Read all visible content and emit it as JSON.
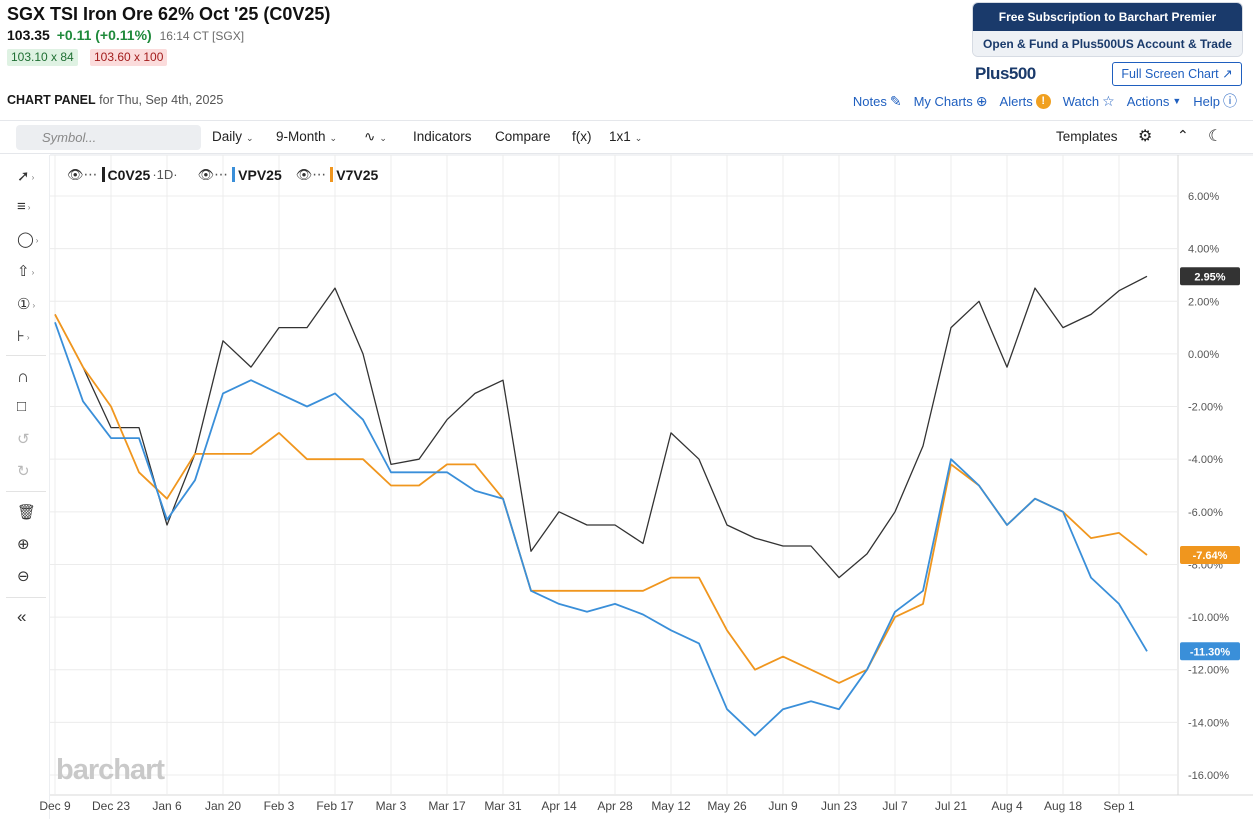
{
  "header": {
    "title": "SGX TSI Iron Ore 62% Oct '25 (C0V25)",
    "last": "103.35",
    "change": "+0.11 (+0.11%)",
    "time": "16:14 CT [SGX]",
    "bid": "103.10 x 84",
    "ask": "103.60 x 100"
  },
  "promo": {
    "line1": "Free Subscription to Barchart Premier",
    "line2": "Open & Fund a Plus500US Account & Trade",
    "logo": "Plus500",
    "full_screen": "Full Screen Chart"
  },
  "panel": {
    "label": "CHART PANEL",
    "date": "for Thu, Sep 4th, 2025"
  },
  "top_links": {
    "notes": "Notes",
    "my_charts": "My Charts",
    "alerts": "Alerts",
    "watch": "Watch",
    "actions": "Actions",
    "help": "Help"
  },
  "toolbar": {
    "search_placeholder": "Symbol...",
    "interval": "Daily",
    "range": "9-Month",
    "indicators": "Indicators",
    "compare": "Compare",
    "fx": "f(x)",
    "layout": "1x1",
    "templates": "Templates"
  },
  "legend": {
    "series1": "C0V25",
    "interval": "1D",
    "series2": "VPV25",
    "series3": "V7V25"
  },
  "brand": "barchart",
  "colors": {
    "c0v25": "#333333",
    "vpv25": "#3a8fd9",
    "v7v25": "#f0961e",
    "link": "#1f5fbf",
    "promo": "#1a3a6b"
  },
  "chart_data": {
    "type": "line",
    "y_axis": {
      "min": -16,
      "max": 6,
      "unit": "%",
      "ticks": [
        "6.00%",
        "4.00%",
        "2.00%",
        "0.00%",
        "-2.00%",
        "-4.00%",
        "-6.00%",
        "-8.00%",
        "-10.00%",
        "-12.00%",
        "-14.00%",
        "-16.00%"
      ]
    },
    "x_tick_labels": [
      "Dec 9",
      "Dec 23",
      "Jan 6",
      "Jan 20",
      "Feb 3",
      "Feb 17",
      "Mar 3",
      "Mar 17",
      "Mar 31",
      "Apr 14",
      "Apr 28",
      "May 12",
      "May 26",
      "Jun 9",
      "Jun 23",
      "Jul 7",
      "Jul 21",
      "Aug 4",
      "Aug 18",
      "Sep 1"
    ],
    "x": [
      "Dec 9",
      "Dec 16",
      "Dec 23",
      "Dec 30",
      "Jan 6",
      "Jan 13",
      "Jan 20",
      "Jan 27",
      "Feb 3",
      "Feb 10",
      "Feb 17",
      "Feb 24",
      "Mar 3",
      "Mar 10",
      "Mar 17",
      "Mar 24",
      "Mar 31",
      "Apr 7",
      "Apr 14",
      "Apr 21",
      "Apr 28",
      "May 5",
      "May 12",
      "May 19",
      "May 26",
      "Jun 2",
      "Jun 9",
      "Jun 16",
      "Jun 23",
      "Jun 30",
      "Jul 7",
      "Jul 14",
      "Jul 21",
      "Jul 28",
      "Aug 4",
      "Aug 11",
      "Aug 18",
      "Aug 25",
      "Sep 1",
      "Sep 4"
    ],
    "grid": true,
    "series": [
      {
        "name": "C0V25",
        "last_label": "2.95%",
        "values": [
          1.5,
          -0.5,
          -2.8,
          -2.8,
          -6.5,
          -3.8,
          0.5,
          -0.5,
          1.0,
          1.0,
          2.5,
          0.0,
          -4.2,
          -4.0,
          -2.5,
          -1.5,
          -1.0,
          -7.5,
          -6.0,
          -6.5,
          -6.5,
          -7.2,
          -3.0,
          -4.0,
          -6.5,
          -7.0,
          -7.3,
          -7.3,
          -8.5,
          -7.6,
          -6.0,
          -3.5,
          1.0,
          2.0,
          -0.5,
          2.5,
          1.0,
          1.5,
          2.4,
          2.95
        ]
      },
      {
        "name": "VPV25",
        "last_label": "-11.30%",
        "values": [
          1.2,
          -1.8,
          -3.2,
          -3.2,
          -6.3,
          -4.8,
          -1.5,
          -1.0,
          -1.5,
          -2.0,
          -1.5,
          -2.5,
          -4.5,
          -4.5,
          -4.5,
          -5.2,
          -5.5,
          -9.0,
          -9.5,
          -9.8,
          -9.5,
          -9.9,
          -10.5,
          -11.0,
          -13.5,
          -14.5,
          -13.5,
          -13.2,
          -13.5,
          -12.0,
          -9.8,
          -9.0,
          -4.0,
          -5.0,
          -6.5,
          -5.5,
          -6.0,
          -8.5,
          -9.5,
          -11.3
        ]
      },
      {
        "name": "V7V25",
        "last_label": "-7.64%",
        "values": [
          1.5,
          -0.5,
          -2.0,
          -4.5,
          -5.5,
          -3.8,
          -3.8,
          -3.8,
          -3.0,
          -4.0,
          -4.0,
          -4.0,
          -5.0,
          -5.0,
          -4.2,
          -4.2,
          -5.5,
          -9.0,
          -9.0,
          -9.0,
          -9.0,
          -9.0,
          -8.5,
          -8.5,
          -10.5,
          -12.0,
          -11.5,
          -12.0,
          -12.5,
          -12.0,
          -10.0,
          -9.5,
          -4.2,
          -5.0,
          -6.5,
          -5.5,
          -6.0,
          -7.0,
          -6.8,
          -7.64
        ]
      }
    ]
  }
}
